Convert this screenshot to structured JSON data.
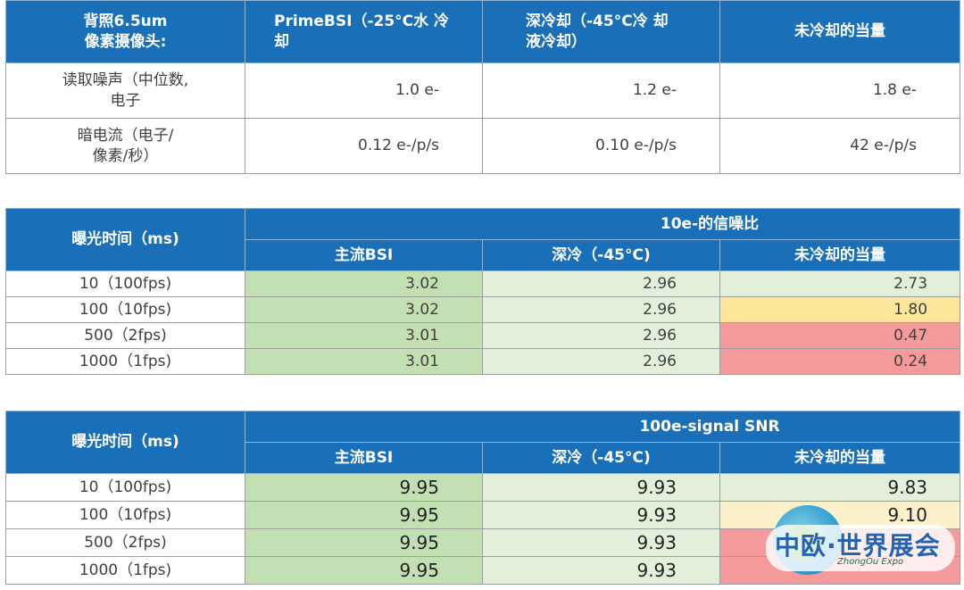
{
  "table1": {
    "header": [
      "背照6.5um\n像素摄像头:",
      "PrimeBSI（-25°C水 冷\n却",
      "深冷却（-45°C冷 却\n液冷却）",
      "未冷却的当量"
    ],
    "rows": [
      {
        "label": "读取噪声（中位数,\n电子",
        "values": [
          "1.0 e-",
          "1.2 e-",
          "1.8 e-"
        ]
      },
      {
        "label": "暗电流（电子/\n像素/秒）",
        "values": [
          "0.12 e-/p/s",
          "0.10 e-/p/s",
          "42 e-/p/s"
        ]
      }
    ]
  },
  "table2": {
    "exposure_header": "曝光时间（ms)",
    "group_header": "10e-的信噪比",
    "columns": [
      "主流BSI",
      "深冷（-45°C)",
      "未冷却的当量"
    ],
    "rows": [
      {
        "exposure": "10（100fps)",
        "values": [
          "3.02",
          "2.96",
          "2.73"
        ]
      },
      {
        "exposure": "100（10fps)",
        "values": [
          "3.02",
          "2.96",
          "1.80"
        ]
      },
      {
        "exposure": "500（2fps)",
        "values": [
          "3.01",
          "2.96",
          "0.47"
        ]
      },
      {
        "exposure": "1000（1fps)",
        "values": [
          "3.01",
          "2.96",
          "0.24"
        ]
      }
    ]
  },
  "table3": {
    "exposure_header": "曝光时间（ms)",
    "group_header": "100e-signal SNR",
    "columns": [
      "主流BSI",
      "深冷（-45°C)",
      "未冷却的当量"
    ],
    "rows": [
      {
        "exposure": "10（100fps)",
        "values": [
          "9.95",
          "9.93",
          "9.83"
        ]
      },
      {
        "exposure": "100（10fps)",
        "values": [
          "9.95",
          "9.93",
          "9.10"
        ]
      },
      {
        "exposure": "500（2fps)",
        "values": [
          "9.95",
          "9.93",
          ""
        ]
      },
      {
        "exposure": "1000（1fps)",
        "values": [
          "9.95",
          "9.93",
          ""
        ]
      }
    ]
  },
  "watermark": {
    "title": "中欧·世界展会",
    "subtitle": "ZhongOu Expo"
  },
  "colors": {
    "header_blue": "#1a70b8",
    "green_dark": "#c3e0b2",
    "green_light": "#e2f0da",
    "yellow": "#fde59a",
    "red": "#f59a9a"
  }
}
